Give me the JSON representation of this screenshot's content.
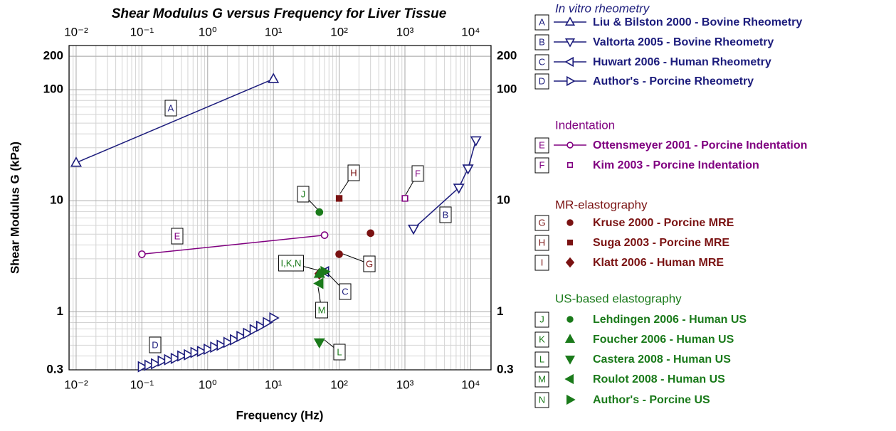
{
  "chart_data": {
    "type": "scatter",
    "title": "Shear Modulus G versus Frequency for Liver Tissue",
    "x_label": "Frequency (Hz)",
    "y_label": "Shear Modulus G (kPa)",
    "xscale": "log",
    "yscale": "log",
    "xlim": [
      0.0078,
      20400
    ],
    "ylim": [
      0.3,
      250
    ],
    "xticks": [
      {
        "value": 0.01,
        "label": "10⁻²"
      },
      {
        "value": 0.1,
        "label": "10⁻¹"
      },
      {
        "value": 1,
        "label": "10⁰"
      },
      {
        "value": 10,
        "label": "10¹"
      },
      {
        "value": 100,
        "label": "10²"
      },
      {
        "value": 1000,
        "label": "10³"
      },
      {
        "value": 10000,
        "label": "10⁴"
      }
    ],
    "yticks": [
      0.3,
      1,
      10,
      100,
      200
    ],
    "grid": true,
    "minor_grid": true,
    "legend": "right",
    "annotations": [
      "I,K,N"
    ],
    "groups": [
      {
        "name": "In vitro rheometry",
        "color": "#1c1c7c",
        "series": [
          {
            "tag": "A",
            "name": "Liu & Bilston 2000 - Bovine Rheometry",
            "color": "#1c1c7c",
            "marker": "triangle-up",
            "line": true,
            "x": [
              0.01,
              10
            ],
            "values": [
              22,
              125
            ]
          },
          {
            "tag": "B",
            "name": "Valtorta 2005 - Bovine Rheometry",
            "color": "#1c1c7c",
            "marker": "triangle-down",
            "line": true,
            "x": [
              1350,
              6600,
              9100,
              12000
            ],
            "values": [
              5.6,
              13.1,
              19.5,
              35
            ]
          },
          {
            "tag": "C",
            "name": "Huwart 2006 - Human Rheometry",
            "color": "#1c1c7c",
            "marker": "triangle-left",
            "line": true,
            "x": [
              61
            ],
            "values": [
              2.3
            ]
          },
          {
            "tag": "D",
            "name": "Author's - Porcine Rheometry",
            "color": "#1c1c7c",
            "marker": "triangle-right",
            "line": true,
            "x": [
              0.1,
              0.126,
              0.158,
              0.2,
              0.251,
              0.316,
              0.398,
              0.501,
              0.631,
              0.794,
              1,
              1.26,
              1.58,
              2,
              2.51,
              3.16,
              3.98,
              5.01,
              6.31,
              7.94,
              10
            ],
            "values": [
              0.32,
              0.33,
              0.34,
              0.36,
              0.37,
              0.38,
              0.4,
              0.41,
              0.43,
              0.44,
              0.46,
              0.48,
              0.5,
              0.53,
              0.56,
              0.6,
              0.64,
              0.69,
              0.74,
              0.8,
              0.88
            ]
          }
        ]
      },
      {
        "name": "Indentation",
        "color": "#800080",
        "series": [
          {
            "tag": "E",
            "name": "Ottensmeyer 2001 - Porcine Indentation",
            "color": "#800080",
            "marker": "circle-open",
            "line": true,
            "x": [
              0.1,
              60
            ],
            "values": [
              3.3,
              4.9
            ]
          },
          {
            "tag": "F",
            "name": "Kim 2003 - Porcine Indentation",
            "color": "#800080",
            "marker": "square-open",
            "line": false,
            "x": [
              1000
            ],
            "values": [
              10.5
            ]
          }
        ]
      },
      {
        "name": "MR-elastography",
        "color": "#7a1212",
        "series": [
          {
            "tag": "G",
            "name": "Kruse 2000 - Porcine MRE",
            "color": "#7a1212",
            "marker": "circle",
            "line": false,
            "x": [
              100,
              300
            ],
            "values": [
              3.3,
              5.1
            ]
          },
          {
            "tag": "H",
            "name": "Suga 2003 - Porcine MRE",
            "color": "#7a1212",
            "marker": "square",
            "line": false,
            "x": [
              100
            ],
            "values": [
              10.5
            ]
          },
          {
            "tag": "I",
            "name": "Klatt 2006 - Human MRE",
            "color": "#7a1212",
            "marker": "diamond",
            "line": false,
            "x": [
              50
            ],
            "values": [
              2.2
            ]
          }
        ]
      },
      {
        "name": "US-based elastography",
        "color": "#1a7a1a",
        "series": [
          {
            "tag": "J",
            "name": "Lehdingen 2006 - Human US",
            "color": "#1a7a1a",
            "marker": "circle",
            "line": false,
            "x": [
              50
            ],
            "values": [
              7.9
            ]
          },
          {
            "tag": "K",
            "name": "Foucher 2006 - Human US",
            "color": "#1a7a1a",
            "marker": "triangle-up",
            "line": false,
            "x": [
              50
            ],
            "values": [
              2.2
            ]
          },
          {
            "tag": "L",
            "name": "Castera 2008 - Human US",
            "color": "#1a7a1a",
            "marker": "triangle-down",
            "line": false,
            "x": [
              50
            ],
            "values": [
              0.53
            ]
          },
          {
            "tag": "M",
            "name": "Roulot 2008 - Human US",
            "color": "#1a7a1a",
            "marker": "triangle-left",
            "line": false,
            "x": [
              50
            ],
            "values": [
              1.8
            ]
          },
          {
            "tag": "N",
            "name": "Author's - Porcine US",
            "color": "#1a7a1a",
            "marker": "triangle-right",
            "line": false,
            "x": [
              60
            ],
            "values": [
              2.3
            ]
          }
        ]
      }
    ]
  }
}
